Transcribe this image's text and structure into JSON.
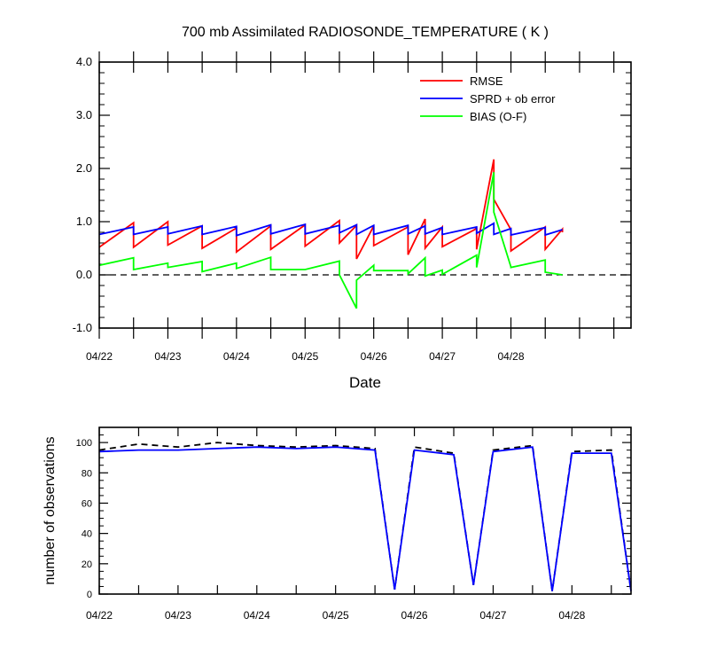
{
  "chart_data": [
    {
      "type": "line",
      "title": "700 mb Assimilated RADIOSONDE_TEMPERATURE ( K )",
      "xlabel": "Date",
      "ylabel": "",
      "ylim": [
        -1.0,
        4.0
      ],
      "yticks": [
        -1.0,
        0.0,
        1.0,
        2.0,
        3.0,
        4.0
      ],
      "ytick_labels": [
        "-1.0",
        "0.0",
        "1.0",
        "2.0",
        "3.0",
        "4.0"
      ],
      "xlim": [
        0,
        7.75
      ],
      "xticks": [
        0,
        1,
        2,
        3,
        4,
        5,
        6
      ],
      "xtick_labels": [
        "04/22",
        "04/23",
        "04/24",
        "04/25",
        "04/26",
        "04/27",
        "04/28"
      ],
      "zero_line": true,
      "legend_position": "top-right",
      "series": [
        {
          "name": "RMSE",
          "color": "#ff0000",
          "x": [
            0,
            0.5,
            0.5,
            1,
            1,
            1.5,
            1.5,
            2,
            2,
            2.5,
            2.5,
            3,
            3,
            3.5,
            3.5,
            3.75,
            3.75,
            4,
            4,
            4.5,
            4.5,
            4.75,
            4.75,
            5,
            5,
            5.5,
            5.5,
            5.75,
            5.75,
            6,
            6,
            6.5,
            6.5,
            6.75,
            6.75
          ],
          "y": [
            0.52,
            0.98,
            0.52,
            1.0,
            0.56,
            0.92,
            0.5,
            0.88,
            0.43,
            0.92,
            0.48,
            0.94,
            0.54,
            1.02,
            0.6,
            0.93,
            0.3,
            0.92,
            0.55,
            0.9,
            0.38,
            1.05,
            0.5,
            0.9,
            0.53,
            0.87,
            0.48,
            2.17,
            1.42,
            0.85,
            0.45,
            0.9,
            0.48,
            0.86,
            0.8
          ]
        },
        {
          "name": "SPRD + ob error",
          "color": "#0000ff",
          "x": [
            0,
            0.5,
            0.5,
            1,
            1,
            1.5,
            1.5,
            2,
            2,
            2.5,
            2.5,
            3,
            3,
            3.5,
            3.5,
            3.75,
            3.75,
            4,
            4,
            4.5,
            4.5,
            4.75,
            4.75,
            5,
            5,
            5.5,
            5.5,
            5.75,
            5.75,
            6,
            6,
            6.5,
            6.5,
            6.75
          ],
          "y": [
            0.76,
            0.9,
            0.76,
            0.9,
            0.77,
            0.92,
            0.76,
            0.91,
            0.74,
            0.94,
            0.77,
            0.95,
            0.77,
            0.93,
            0.79,
            0.94,
            0.76,
            0.93,
            0.76,
            0.93,
            0.77,
            0.92,
            0.77,
            0.89,
            0.76,
            0.9,
            0.78,
            0.97,
            0.76,
            0.87,
            0.75,
            0.89,
            0.75,
            0.85
          ]
        },
        {
          "name": "BIAS (O-F)",
          "color": "#00ff00",
          "x": [
            0,
            0.5,
            0.5,
            1,
            1,
            1.5,
            1.5,
            2,
            2,
            2.5,
            2.5,
            3,
            3,
            3.5,
            3.5,
            3.75,
            3.75,
            4,
            4,
            4.5,
            4.5,
            4.75,
            4.75,
            5,
            5,
            5.5,
            5.5,
            5.75,
            5.75,
            6,
            6,
            6.5,
            6.5,
            6.75
          ],
          "y": [
            0.18,
            0.32,
            0.1,
            0.22,
            0.14,
            0.25,
            0.06,
            0.22,
            0.12,
            0.33,
            0.1,
            0.1,
            0.1,
            0.26,
            0.0,
            -0.63,
            -0.1,
            0.18,
            0.08,
            0.08,
            0.02,
            0.32,
            -0.02,
            0.09,
            0.01,
            0.37,
            0.14,
            1.93,
            1.18,
            0.15,
            0.14,
            0.28,
            0.05,
            0.0
          ]
        }
      ]
    },
    {
      "type": "line",
      "title": "",
      "xlabel": "",
      "ylabel": "number of observations",
      "ylim": [
        0,
        110
      ],
      "yticks": [
        0,
        20,
        40,
        60,
        80,
        100
      ],
      "ytick_labels": [
        "0",
        "20",
        "40",
        "60",
        "80",
        "100"
      ],
      "xlim": [
        0,
        6.75
      ],
      "xticks": [
        0,
        1,
        2,
        3,
        4,
        5,
        6
      ],
      "xtick_labels": [
        "04/22",
        "04/23",
        "04/24",
        "04/25",
        "04/26",
        "04/27",
        "04/28"
      ],
      "series": [
        {
          "color": "#000000",
          "dashed": true,
          "x": [
            0,
            0.5,
            1,
            1.5,
            2,
            2.5,
            3,
            3.5,
            3.75,
            4,
            4.5,
            4.75,
            5,
            5.5,
            5.75,
            6,
            6.5,
            6.75
          ],
          "y": [
            95,
            99,
            97,
            100,
            98,
            97,
            98,
            96,
            3,
            97,
            93,
            6,
            95,
            98,
            2,
            94,
            95,
            2
          ]
        },
        {
          "color": "#0000ff",
          "dashed": false,
          "x": [
            0,
            0.5,
            1,
            1.5,
            2,
            2.5,
            3,
            3.5,
            3.75,
            4,
            4.5,
            4.75,
            5,
            5.5,
            5.75,
            6,
            6.5,
            6.75
          ],
          "y": [
            94,
            95,
            95,
            96,
            97,
            96,
            97,
            95,
            3,
            95,
            92,
            6,
            94,
            97,
            2,
            93,
            93,
            2
          ]
        }
      ]
    }
  ]
}
